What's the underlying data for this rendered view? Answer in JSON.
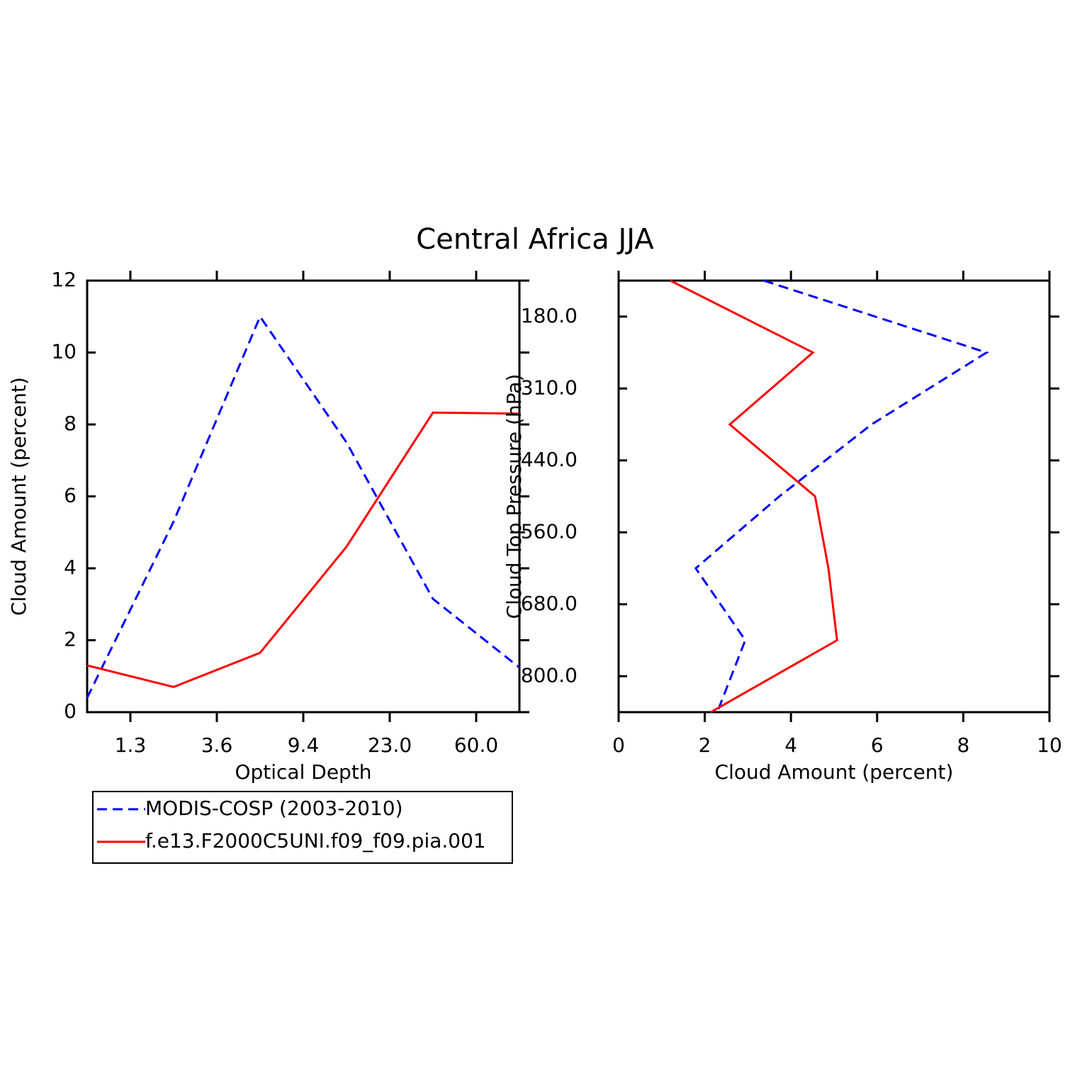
{
  "chart_data": [
    {
      "type": "line",
      "title": "Central Africa JJA",
      "x_label": "Optical Depth",
      "y_label": "Cloud Amount (percent)",
      "x": [
        0,
        1,
        2,
        3,
        4,
        5
      ],
      "xlim": [
        0,
        5
      ],
      "xticks": [
        {
          "value": 0.5,
          "label": "1.3"
        },
        {
          "value": 1.5,
          "label": "3.6"
        },
        {
          "value": 2.5,
          "label": "9.4"
        },
        {
          "value": 3.5,
          "label": "23.0"
        },
        {
          "value": 4.5,
          "label": "60.0"
        }
      ],
      "ylim": [
        0,
        12
      ],
      "yticks": [
        0,
        2,
        4,
        6,
        8,
        10,
        12
      ],
      "legend": "bottom",
      "series": [
        {
          "name": "MODIS-COSP (2003-2010)",
          "color": "#0000ff",
          "dash": true,
          "values": [
            0.4,
            5.3,
            11.0,
            7.5,
            3.15,
            1.24
          ]
        },
        {
          "name": "f.e13.F2000C5UNI.f09_f09.pia.001",
          "color": "#ff0000",
          "dash": false,
          "values": [
            1.3,
            0.7,
            1.65,
            4.6,
            8.33,
            8.3
          ]
        }
      ]
    },
    {
      "type": "line",
      "orientation": "horizontal",
      "x_label": "Cloud Amount (percent)",
      "y_label": "Cloud Top Pressure (hPa)",
      "y": [
        0,
        1,
        2,
        3,
        4,
        5,
        6
      ],
      "xlim": [
        0,
        10
      ],
      "xticks": [
        0,
        2,
        4,
        6,
        8,
        10
      ],
      "ylim": [
        6,
        0
      ],
      "yticks": [
        {
          "value": 0.5,
          "label": "180.0"
        },
        {
          "value": 1.5,
          "label": "310.0"
        },
        {
          "value": 2.5,
          "label": "440.0"
        },
        {
          "value": 3.5,
          "label": "560.0"
        },
        {
          "value": 4.5,
          "label": "680.0"
        },
        {
          "value": 5.5,
          "label": "800.0"
        }
      ],
      "series": [
        {
          "color": "#0000ff",
          "dash": true,
          "values": [
            3.37,
            8.54,
            5.87,
            3.73,
            1.79,
            2.94,
            2.29
          ]
        },
        {
          "color": "#ff0000",
          "dash": false,
          "values": [
            1.2,
            4.51,
            2.58,
            4.56,
            4.87,
            5.07,
            2.14
          ]
        }
      ]
    }
  ]
}
